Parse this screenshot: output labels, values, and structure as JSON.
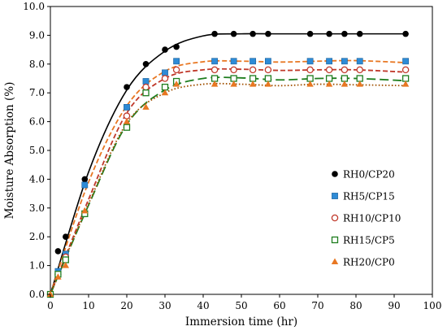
{
  "chart_data": {
    "type": "scatter",
    "title": "",
    "xlabel": "Immersion time (hr)",
    "ylabel": "Moisture Absorption (%)",
    "xlim": [
      0,
      100
    ],
    "ylim": [
      0.0,
      10.0
    ],
    "x_ticks": [
      0,
      10,
      20,
      30,
      40,
      50,
      60,
      70,
      80,
      90,
      100
    ],
    "y_ticks": [
      "0.0",
      "1.0",
      "2.0",
      "3.0",
      "4.0",
      "5.0",
      "6.0",
      "7.0",
      "8.0",
      "9.0",
      "10.0"
    ],
    "grid": false,
    "legend_position": "right",
    "series": [
      {
        "name": "RH0/CP20",
        "marker": "filled-circle",
        "color": "#000000",
        "line_style": "solid",
        "x": [
          0,
          2,
          4,
          9,
          20,
          25,
          30,
          33,
          43,
          48,
          53,
          57,
          68,
          73,
          77,
          81,
          93
        ],
        "y": [
          0.0,
          1.5,
          2.0,
          4.0,
          7.2,
          8.0,
          8.5,
          8.6,
          9.05,
          9.05,
          9.05,
          9.05,
          9.05,
          9.05,
          9.05,
          9.05,
          9.05
        ],
        "fit": [
          [
            0,
            0
          ],
          [
            10,
            4.25
          ],
          [
            20,
            7.1
          ],
          [
            30,
            8.45
          ],
          [
            40,
            8.98
          ],
          [
            50,
            9.05
          ],
          [
            60,
            9.05
          ],
          [
            70,
            9.05
          ],
          [
            80,
            9.05
          ],
          [
            93,
            9.05
          ]
        ]
      },
      {
        "name": "RH5/CP15",
        "marker": "filled-square",
        "color": "#2e8bd6",
        "line_color": "#e87722",
        "line_style": "dashed",
        "x": [
          0,
          2,
          4,
          9,
          20,
          25,
          30,
          33,
          43,
          48,
          53,
          57,
          68,
          73,
          77,
          81,
          93
        ],
        "y": [
          0.0,
          0.8,
          1.4,
          3.8,
          6.5,
          7.4,
          7.7,
          8.1,
          8.1,
          8.1,
          8.1,
          8.1,
          8.1,
          8.1,
          8.1,
          8.1,
          8.1
        ],
        "fit": [
          [
            0,
            0
          ],
          [
            10,
            3.9
          ],
          [
            20,
            6.55
          ],
          [
            30,
            7.75
          ],
          [
            40,
            8.08
          ],
          [
            50,
            8.1
          ],
          [
            60,
            8.07
          ],
          [
            70,
            8.1
          ],
          [
            80,
            8.12
          ],
          [
            93,
            8.05
          ]
        ]
      },
      {
        "name": "RH10/CP10",
        "marker": "open-circle",
        "color": "#c0392b",
        "line_style": "dashed",
        "x": [
          0,
          2,
          4,
          9,
          20,
          25,
          30,
          33,
          43,
          48,
          53,
          57,
          68,
          73,
          77,
          81,
          93
        ],
        "y": [
          0.0,
          0.7,
          1.3,
          2.8,
          6.2,
          7.2,
          7.5,
          7.8,
          7.8,
          7.8,
          7.8,
          7.8,
          7.8,
          7.8,
          7.8,
          7.8,
          7.8
        ],
        "fit": [
          [
            0,
            0
          ],
          [
            10,
            3.3
          ],
          [
            20,
            6.3
          ],
          [
            30,
            7.5
          ],
          [
            40,
            7.8
          ],
          [
            50,
            7.82
          ],
          [
            60,
            7.78
          ],
          [
            70,
            7.8
          ],
          [
            80,
            7.8
          ],
          [
            93,
            7.72
          ]
        ]
      },
      {
        "name": "RH15/CP5",
        "marker": "open-square",
        "color": "#1e7d1e",
        "line_style": "long-dash",
        "x": [
          0,
          2,
          4,
          9,
          20,
          25,
          30,
          33,
          43,
          48,
          53,
          57,
          68,
          73,
          77,
          81,
          93
        ],
        "y": [
          0.0,
          0.7,
          1.2,
          2.8,
          5.8,
          7.0,
          7.2,
          7.4,
          7.5,
          7.5,
          7.5,
          7.5,
          7.5,
          7.5,
          7.5,
          7.5,
          7.5
        ],
        "fit": [
          [
            0,
            0
          ],
          [
            10,
            3.1
          ],
          [
            20,
            5.9
          ],
          [
            30,
            7.1
          ],
          [
            40,
            7.5
          ],
          [
            50,
            7.52
          ],
          [
            60,
            7.45
          ],
          [
            70,
            7.5
          ],
          [
            80,
            7.5
          ],
          [
            93,
            7.42
          ]
        ]
      },
      {
        "name": "RH20/CP0",
        "marker": "filled-triangle",
        "color": "#e87722",
        "line_color": "#a05000",
        "line_style": "dotted",
        "x": [
          0,
          2,
          4,
          9,
          20,
          25,
          30,
          33,
          43,
          48,
          53,
          57,
          68,
          73,
          77,
          81,
          93
        ],
        "y": [
          0.0,
          0.6,
          1.0,
          2.9,
          6.0,
          6.5,
          7.0,
          7.3,
          7.3,
          7.3,
          7.3,
          7.3,
          7.3,
          7.3,
          7.3,
          7.3,
          7.3
        ],
        "fit": [
          [
            0,
            0
          ],
          [
            10,
            3.15
          ],
          [
            20,
            5.95
          ],
          [
            30,
            7.0
          ],
          [
            40,
            7.3
          ],
          [
            50,
            7.3
          ],
          [
            60,
            7.25
          ],
          [
            70,
            7.3
          ],
          [
            80,
            7.28
          ],
          [
            93,
            7.25
          ]
        ]
      }
    ]
  }
}
